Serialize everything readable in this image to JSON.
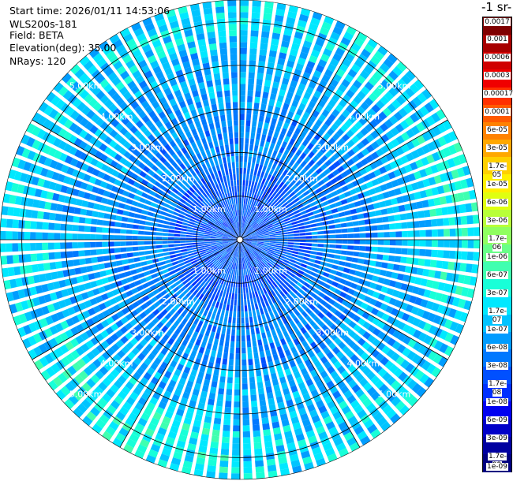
{
  "header": {
    "start_time": "Start time: 2026/01/11 14:53:06",
    "instrument": "WLS200s-181",
    "field": "Field: BETA",
    "elevation": "Elevation(deg): 35.00",
    "nrays": "NRays: 120"
  },
  "colorbar": {
    "title": "-1 sr-",
    "labels": [
      "0.0017",
      "0.001",
      "0.0006",
      "0.0003",
      "0.00017",
      "0.0001",
      "6e-05",
      "3e-05",
      "1.7e-05",
      "1e-05",
      "6e-06",
      "3e-06",
      "1.7e-06",
      "1e-06",
      "6e-07",
      "3e-07",
      "1.7e-07",
      "1e-07",
      "6e-08",
      "3e-08",
      "1.7e-08",
      "1e-08",
      "6e-09",
      "3e-09",
      "1.7e-09",
      "1e-09"
    ],
    "colors": [
      "#7f0000",
      "#a80000",
      "#d00000",
      "#f00000",
      "#ff3000",
      "#ff5a00",
      "#ff8200",
      "#ffa800",
      "#ffd000",
      "#fff000",
      "#e0ff10",
      "#b8ff38",
      "#90ff60",
      "#68ff88",
      "#40ffb0",
      "#18ffd8",
      "#00e8ff",
      "#00c4ff",
      "#009cff",
      "#0078ff",
      "#0050ff",
      "#0030ff",
      "#0000f0",
      "#0000c8",
      "#0000a0",
      "#000080"
    ]
  },
  "chart_data": {
    "type": "heatmap",
    "projection": "polar",
    "field": "BETA",
    "elevation_deg": 35.0,
    "n_rays": 120,
    "range_rings_km": [
      1,
      2,
      3,
      4,
      5
    ],
    "ring_labels": [
      "1.00km",
      "2.00km",
      "3.00km",
      "4.00km",
      "5.00km"
    ],
    "max_range_km": 5.5,
    "color_scale": "log",
    "value_range": [
      1e-09,
      0.0017
    ],
    "typical_value": 3e-08,
    "azimuth_lines_deg": [
      0,
      30,
      60,
      90,
      120,
      150,
      180,
      210,
      240,
      270,
      300,
      330
    ]
  }
}
